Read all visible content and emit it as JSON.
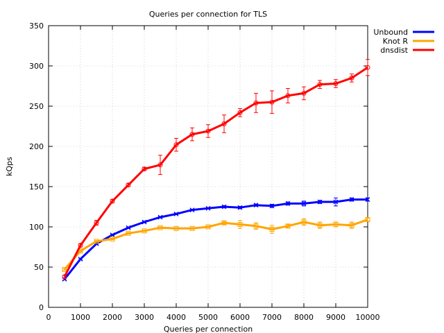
{
  "chart_data": {
    "type": "line",
    "title": "Queries per connection for TLS",
    "xlabel": "Queries per connection",
    "ylabel": "kQps",
    "xlim": [
      0,
      10000
    ],
    "ylim": [
      0,
      350
    ],
    "xticks": [
      0,
      1000,
      2000,
      3000,
      4000,
      5000,
      6000,
      7000,
      8000,
      9000,
      10000
    ],
    "yticks": [
      0,
      50,
      100,
      150,
      200,
      250,
      300,
      350
    ],
    "grid": true,
    "legend_position": "top-right, outside plot",
    "series": [
      {
        "name": "Unbound",
        "color": "#0000ff",
        "marker": "x",
        "x": [
          500,
          1000,
          1500,
          2000,
          2500,
          3000,
          3500,
          4000,
          4500,
          5000,
          5500,
          6000,
          6500,
          7000,
          7500,
          8000,
          8500,
          9000,
          9500,
          10000
        ],
        "y": [
          35,
          60,
          79,
          90,
          99,
          106,
          112,
          116,
          121,
          123,
          125,
          124,
          127,
          126,
          129,
          129,
          131,
          131,
          134,
          134
        ],
        "err": [
          1,
          1,
          1,
          1,
          1,
          1,
          1,
          1,
          1,
          1,
          1.5,
          1.5,
          1.5,
          2,
          2,
          3,
          2,
          5,
          2,
          2
        ]
      },
      {
        "name": "Knot R",
        "color": "#ffa500",
        "marker": "square",
        "x": [
          500,
          1000,
          1500,
          2000,
          2500,
          3000,
          3500,
          4000,
          4500,
          5000,
          5500,
          6000,
          6500,
          7000,
          7500,
          8000,
          8500,
          9000,
          9500,
          10000
        ],
        "y": [
          47,
          70,
          82,
          85,
          92,
          95,
          99,
          98,
          98,
          100,
          105,
          103,
          101,
          97,
          101,
          106,
          102,
          103,
          102,
          109
        ],
        "err": [
          1,
          1,
          1,
          1,
          1,
          1,
          1,
          1,
          1,
          1,
          2,
          5,
          4,
          5,
          2,
          4,
          4,
          3,
          4,
          2
        ]
      },
      {
        "name": "dnsdist",
        "color": "#ff0000",
        "marker": "circle",
        "x": [
          500,
          1000,
          1500,
          2000,
          2500,
          3000,
          3500,
          4000,
          4500,
          5000,
          5500,
          6000,
          6500,
          7000,
          7500,
          8000,
          8500,
          9000,
          9500,
          10000
        ],
        "y": [
          38,
          77,
          105,
          132,
          152,
          172,
          177,
          202,
          215,
          219,
          228,
          242,
          254,
          255,
          263,
          266,
          277,
          278,
          285,
          298
        ],
        "err": [
          2,
          2,
          3,
          2,
          2,
          2,
          12,
          8,
          8,
          8,
          11,
          5,
          12,
          14,
          9,
          8,
          5,
          5,
          5,
          10
        ]
      }
    ]
  }
}
